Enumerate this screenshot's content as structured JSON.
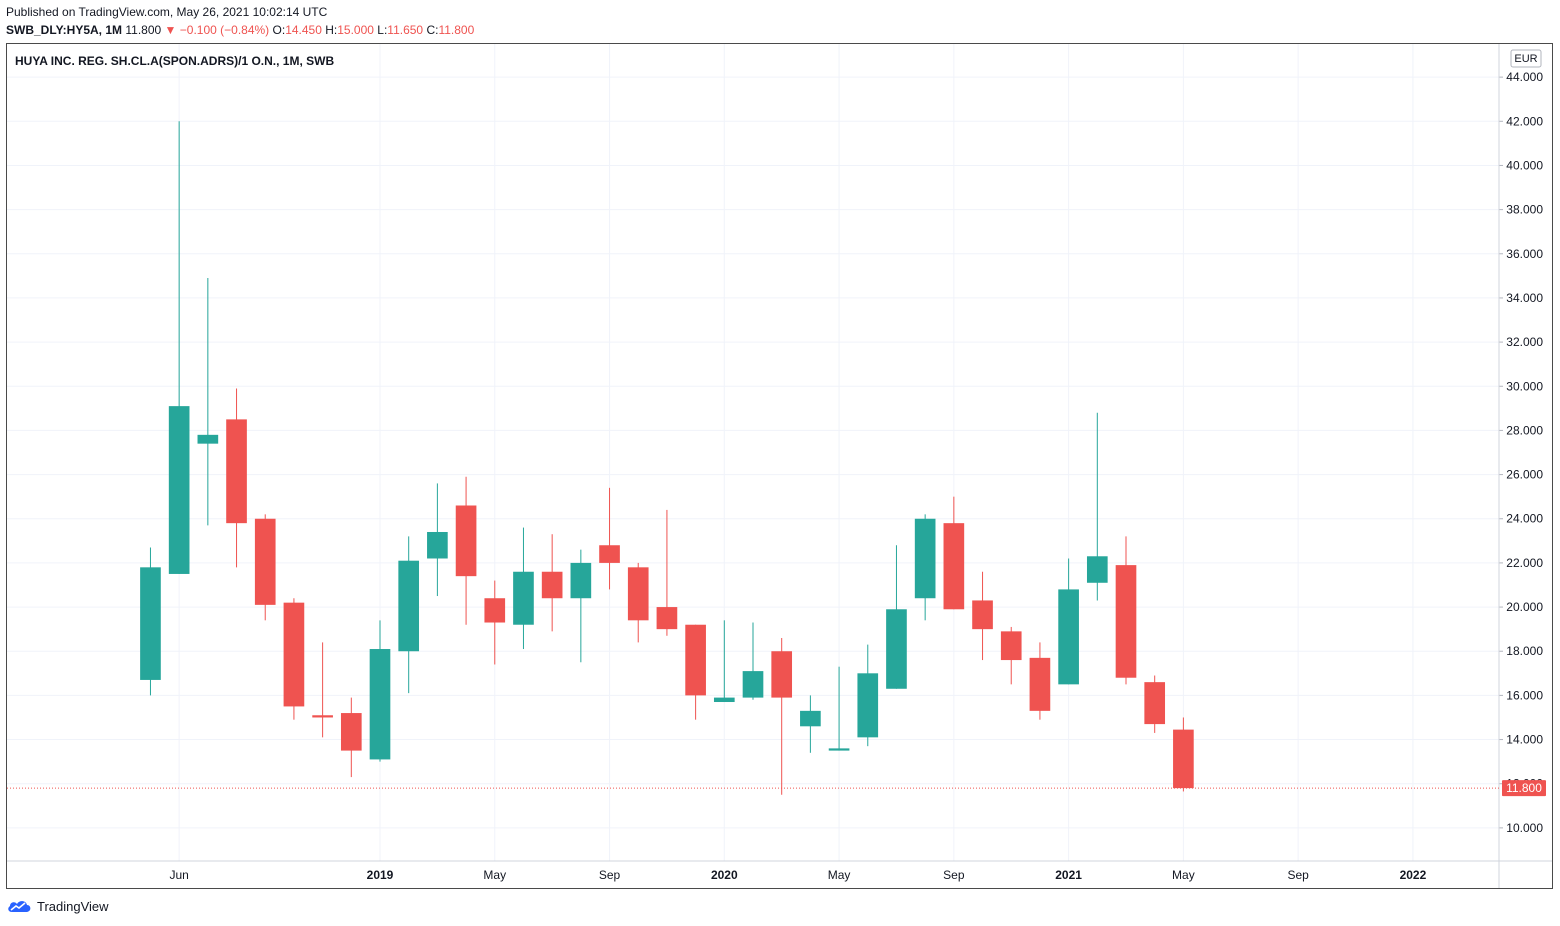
{
  "header": {
    "published": "Published on TradingView.com, May 26, 2021 10:02:14 UTC",
    "symbol": "SWB_DLY:HY5A, 1M",
    "last": "11.800",
    "change": "−0.100 (−0.84%)",
    "o_label": "O:",
    "o_value": "14.450",
    "h_label": "H:",
    "h_value": "15.000",
    "l_label": "L:",
    "l_value": "11.650",
    "c_label": "C:",
    "c_value": "11.800"
  },
  "footer": {
    "brand": "TradingView"
  },
  "colors": {
    "up": "#26a69a",
    "down": "#ef5350",
    "grid": "#f0f3fa",
    "axis_text": "#131722",
    "price_line": "#ef5350"
  },
  "chart_data": {
    "type": "candlestick",
    "title": "HUYA INC. REG. SH.CL.A(SPON.ADRS)/1 O.N., 1M, SWB",
    "currency": "EUR",
    "last_price_label": "11.800",
    "y_range": [
      8.5,
      45.5
    ],
    "y_ticks": [
      "10.000",
      "12.000",
      "14.000",
      "16.000",
      "18.000",
      "20.000",
      "22.000",
      "24.000",
      "26.000",
      "28.000",
      "30.000",
      "32.000",
      "34.000",
      "36.000",
      "38.000",
      "40.000",
      "42.000",
      "44.000"
    ],
    "x_ticks": [
      {
        "label": "Jun",
        "month": "2018-06",
        "bold": false
      },
      {
        "label": "2019",
        "month": "2019-01",
        "bold": true
      },
      {
        "label": "May",
        "month": "2019-05",
        "bold": false
      },
      {
        "label": "Sep",
        "month": "2019-09",
        "bold": false
      },
      {
        "label": "2020",
        "month": "2020-01",
        "bold": true
      },
      {
        "label": "May",
        "month": "2020-05",
        "bold": false
      },
      {
        "label": "Sep",
        "month": "2020-09",
        "bold": false
      },
      {
        "label": "2021",
        "month": "2021-01",
        "bold": true
      },
      {
        "label": "May",
        "month": "2021-05",
        "bold": false
      },
      {
        "label": "Sep",
        "month": "2021-09",
        "bold": false
      },
      {
        "label": "2022",
        "month": "2022-01",
        "bold": true
      }
    ],
    "x_domain": [
      "2017-12",
      "2022-04"
    ],
    "candles": [
      {
        "month": "2018-05",
        "o": 16.7,
        "h": 22.7,
        "l": 16.0,
        "c": 21.8
      },
      {
        "month": "2018-06",
        "o": 21.5,
        "h": 42.0,
        "l": 21.5,
        "c": 29.1
      },
      {
        "month": "2018-07",
        "o": 27.4,
        "h": 34.9,
        "l": 23.7,
        "c": 27.8
      },
      {
        "month": "2018-08",
        "o": 28.5,
        "h": 29.9,
        "l": 21.8,
        "c": 23.8
      },
      {
        "month": "2018-09",
        "o": 24.0,
        "h": 24.2,
        "l": 19.4,
        "c": 20.1
      },
      {
        "month": "2018-10",
        "o": 20.2,
        "h": 20.4,
        "l": 14.9,
        "c": 15.5
      },
      {
        "month": "2018-11",
        "o": 15.1,
        "h": 18.4,
        "l": 14.1,
        "c": 15.0
      },
      {
        "month": "2018-12",
        "o": 15.2,
        "h": 15.9,
        "l": 12.3,
        "c": 13.5
      },
      {
        "month": "2019-01",
        "o": 13.1,
        "h": 19.4,
        "l": 13.0,
        "c": 18.1
      },
      {
        "month": "2019-02",
        "o": 18.0,
        "h": 23.2,
        "l": 16.1,
        "c": 22.1
      },
      {
        "month": "2019-03",
        "o": 22.2,
        "h": 25.6,
        "l": 20.5,
        "c": 23.4
      },
      {
        "month": "2019-04",
        "o": 24.6,
        "h": 25.9,
        "l": 19.2,
        "c": 21.4
      },
      {
        "month": "2019-05",
        "o": 20.4,
        "h": 21.2,
        "l": 17.4,
        "c": 19.3
      },
      {
        "month": "2019-06",
        "o": 19.2,
        "h": 23.6,
        "l": 18.1,
        "c": 21.6
      },
      {
        "month": "2019-07",
        "o": 21.6,
        "h": 23.3,
        "l": 18.9,
        "c": 20.4
      },
      {
        "month": "2019-08",
        "o": 20.4,
        "h": 22.6,
        "l": 17.5,
        "c": 22.0
      },
      {
        "month": "2019-09",
        "o": 22.8,
        "h": 25.4,
        "l": 20.8,
        "c": 22.0
      },
      {
        "month": "2019-10",
        "o": 21.8,
        "h": 22.0,
        "l": 18.4,
        "c": 19.4
      },
      {
        "month": "2019-11",
        "o": 20.0,
        "h": 24.4,
        "l": 18.7,
        "c": 19.0
      },
      {
        "month": "2019-12",
        "o": 19.2,
        "h": 19.2,
        "l": 14.9,
        "c": 16.0
      },
      {
        "month": "2020-01",
        "o": 15.7,
        "h": 19.4,
        "l": 15.7,
        "c": 15.9
      },
      {
        "month": "2020-02",
        "o": 15.9,
        "h": 19.3,
        "l": 15.8,
        "c": 17.1
      },
      {
        "month": "2020-03",
        "o": 18.0,
        "h": 18.6,
        "l": 11.5,
        "c": 15.9
      },
      {
        "month": "2020-04",
        "o": 14.6,
        "h": 16.0,
        "l": 13.4,
        "c": 15.3
      },
      {
        "month": "2020-05",
        "o": 13.5,
        "h": 17.3,
        "l": 13.5,
        "c": 13.6
      },
      {
        "month": "2020-06",
        "o": 14.1,
        "h": 18.3,
        "l": 13.7,
        "c": 17.0
      },
      {
        "month": "2020-07",
        "o": 16.3,
        "h": 22.8,
        "l": 16.3,
        "c": 19.9
      },
      {
        "month": "2020-08",
        "o": 20.4,
        "h": 24.2,
        "l": 19.4,
        "c": 24.0
      },
      {
        "month": "2020-09",
        "o": 23.8,
        "h": 25.0,
        "l": 19.9,
        "c": 19.9
      },
      {
        "month": "2020-10",
        "o": 20.3,
        "h": 21.6,
        "l": 17.6,
        "c": 19.0
      },
      {
        "month": "2020-11",
        "o": 18.9,
        "h": 19.1,
        "l": 16.5,
        "c": 17.6
      },
      {
        "month": "2020-12",
        "o": 17.7,
        "h": 18.4,
        "l": 14.9,
        "c": 15.3
      },
      {
        "month": "2021-01",
        "o": 16.5,
        "h": 22.2,
        "l": 16.5,
        "c": 20.8
      },
      {
        "month": "2021-02",
        "o": 21.1,
        "h": 28.8,
        "l": 20.3,
        "c": 22.3
      },
      {
        "month": "2021-03",
        "o": 21.9,
        "h": 23.2,
        "l": 16.5,
        "c": 16.8
      },
      {
        "month": "2021-04",
        "o": 16.6,
        "h": 16.9,
        "l": 14.3,
        "c": 14.7
      },
      {
        "month": "2021-05",
        "o": 14.45,
        "h": 15.0,
        "l": 11.65,
        "c": 11.8
      }
    ]
  }
}
